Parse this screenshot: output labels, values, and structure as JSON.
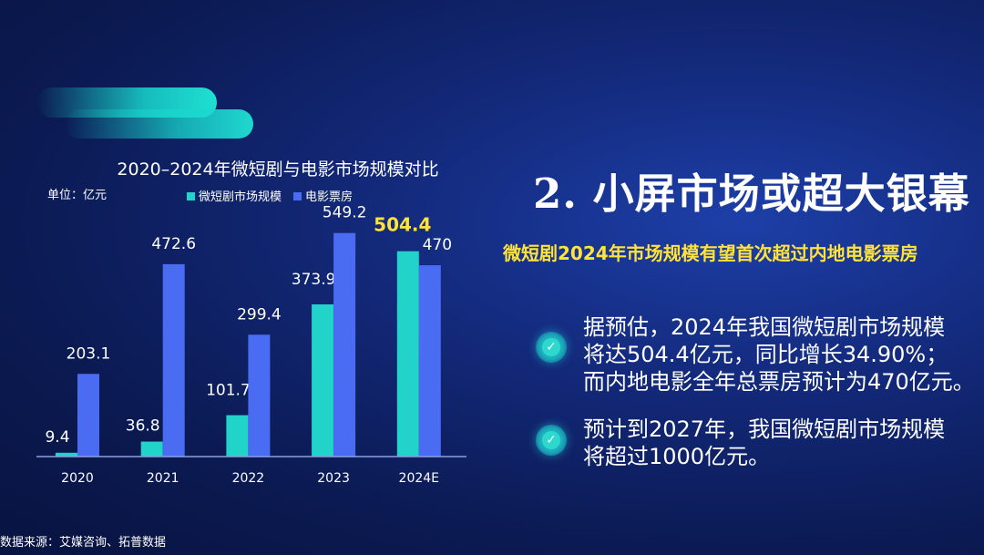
{
  "chart_data": {
    "type": "bar",
    "title": "2020–2024年微短剧与电影市场规模对比",
    "unit_label": "单位：亿元",
    "categories": [
      "2020",
      "2021",
      "2022",
      "2023",
      "2024E"
    ],
    "series": [
      {
        "name": "微短剧市场规模",
        "color": "#22d3c9",
        "values": [
          9.4,
          36.8,
          101.7,
          373.9,
          504.4
        ]
      },
      {
        "name": "电影票房",
        "color": "#4a6cf2",
        "values": [
          203.1,
          472.6,
          299.4,
          549.2,
          470
        ]
      }
    ],
    "ylim": [
      0,
      600
    ],
    "grid": false,
    "legend": "top",
    "highlight": {
      "series": 0,
      "index": 4,
      "color": "#ffe23a"
    }
  },
  "source": "数据来源：艾媒咨询、拓普数据",
  "main_title": "2. 小屏市场或超大银幕",
  "subtitle": "微短剧2024年市场规模有望首次超过内地电影票房",
  "bullets": [
    {
      "icon": "check-circle-icon",
      "lines": [
        "据预估，2024年我国微短剧市场规模",
        "将达504.4亿元，同比增长34.90%；",
        "而内地电影全年总票房预计为470亿元。"
      ]
    },
    {
      "icon": "check-circle-icon",
      "lines": [
        "预计到2027年，我国微短剧市场规模",
        "将超过1000亿元。"
      ]
    }
  ]
}
